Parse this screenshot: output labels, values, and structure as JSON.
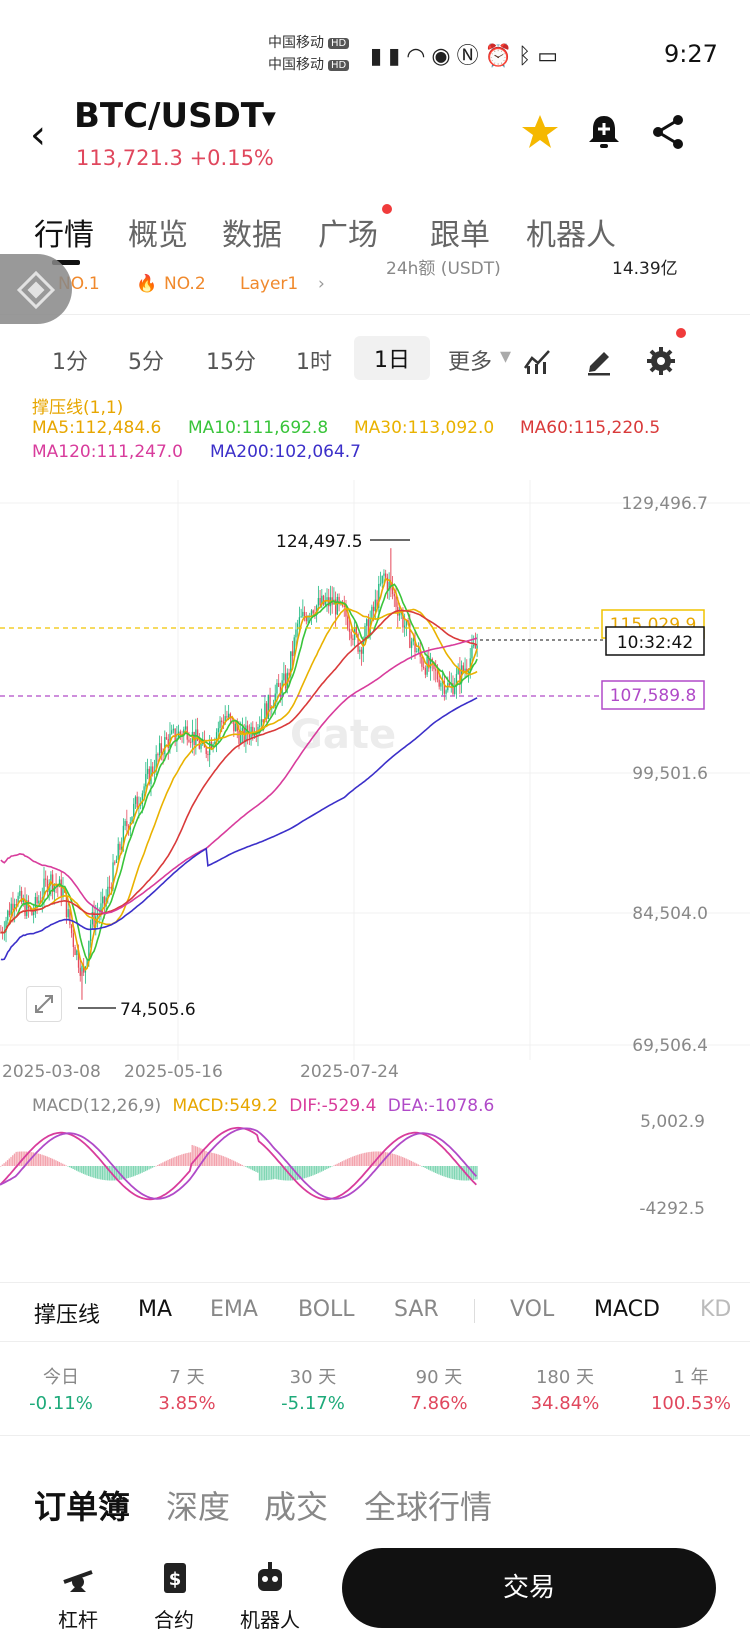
{
  "status_bar": {
    "carrier1": "中国移动",
    "carrier2": "中国移动",
    "hd": "HD",
    "time": "9:27"
  },
  "header": {
    "pair": "BTC/USDT",
    "price": "113,721.3",
    "change": "+0.15%"
  },
  "tabs": [
    {
      "label": "行情"
    },
    {
      "label": "概览"
    },
    {
      "label": "数据"
    },
    {
      "label": "广场"
    },
    {
      "label": "跟单"
    },
    {
      "label": "机器人"
    }
  ],
  "tags": {
    "t1": "NO.1",
    "t2": "NO.2",
    "t3": "Layer1",
    "vol_label": "24h额 (USDT)",
    "vol_value": "14.39亿"
  },
  "intervals": [
    "1分",
    "5分",
    "15分",
    "1时",
    "1日",
    "更多"
  ],
  "legend": {
    "support": "撑压线(1,1)",
    "ma5": "MA5:112,484.6",
    "ma10": "MA10:111,692.8",
    "ma30": "MA30:113,092.0",
    "ma60": "MA60:115,220.5",
    "ma120": "MA120:111,247.0",
    "ma200": "MA200:102,064.7"
  },
  "chart_data": {
    "type": "candlestick",
    "y_ticks": [
      "129,496.7",
      "99,501.6",
      "84,504.0",
      "69,506.4"
    ],
    "x_ticks": [
      "2025-03-08",
      "2025-05-16",
      "2025-07-24"
    ],
    "high_label": "124,497.5",
    "low_label": "74,505.6",
    "resistance_label": "115,029.9",
    "support_label": "107,589.8",
    "countdown": "10:32:42",
    "ylim": [
      69506.4,
      129496.7
    ],
    "watermark": "Gate"
  },
  "macd": {
    "title": "MACD(12,26,9)",
    "macd": "MACD:549.2",
    "dif": "DIF:-529.4",
    "dea": "DEA:-1078.6",
    "y_top": "5,002.9",
    "y_bottom": "-4292.5"
  },
  "indicators": [
    "撑压线",
    "MA",
    "EMA",
    "BOLL",
    "SAR",
    "VOL",
    "MACD",
    "KD"
  ],
  "performance": [
    {
      "label": "今日",
      "value": "-0.11%",
      "color": "#1eaa7a"
    },
    {
      "label": "7 天",
      "value": "3.85%",
      "color": "#e0475d"
    },
    {
      "label": "30 天",
      "value": "-5.17%",
      "color": "#1eaa7a"
    },
    {
      "label": "90 天",
      "value": "7.86%",
      "color": "#e0475d"
    },
    {
      "label": "180 天",
      "value": "34.84%",
      "color": "#e0475d"
    },
    {
      "label": "1 年",
      "value": "100.53%",
      "color": "#e0475d"
    }
  ],
  "order_tabs": [
    "订单簿",
    "深度",
    "成交",
    "全球行情"
  ],
  "bottom_bar": {
    "leverage": "杠杆",
    "contract": "合约",
    "robot": "机器人",
    "trade": "交易"
  }
}
